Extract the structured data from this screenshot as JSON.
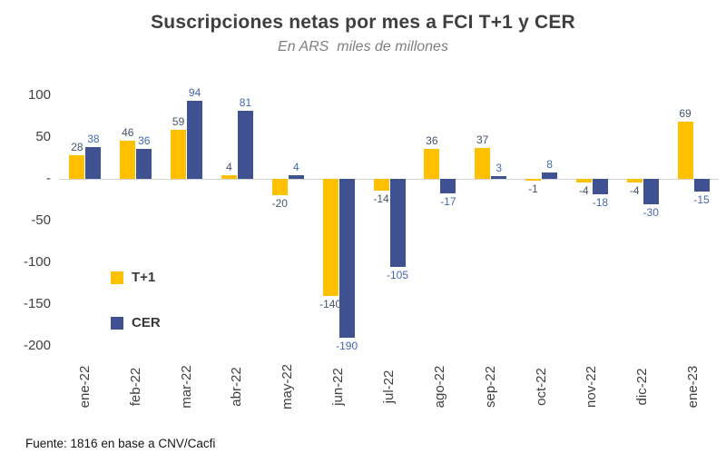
{
  "header": {
    "title": "Suscripciones netas por mes a FCI T+1 y CER",
    "subtitle": "En ARS  miles de millones"
  },
  "footer": {
    "source": "Fuente: 1816 en base a CNV/Cacfi"
  },
  "chart_data": {
    "type": "bar",
    "title": "Suscripciones netas por mes a FCI T+1 y CER",
    "subtitle": "En ARS  miles de millones",
    "categories": [
      "ene-22",
      "feb-22",
      "mar-22",
      "abr-22",
      "may-22",
      "jun-22",
      "jul-22",
      "ago-22",
      "sep-22",
      "oct-22",
      "nov-22",
      "dic-22",
      "ene-23"
    ],
    "series": [
      {
        "name": "T+1",
        "color": "#FFC000",
        "label_color": "#44546A",
        "values": [
          28,
          46,
          59,
          4,
          -20,
          -140,
          -14,
          36,
          37,
          -1,
          -4,
          -4,
          69
        ]
      },
      {
        "name": "CER",
        "color": "#3F5190",
        "label_color": "#4467B1",
        "values": [
          38,
          36,
          94,
          81,
          4,
          -190,
          -105,
          -17,
          3,
          8,
          -18,
          -30,
          -15
        ]
      }
    ],
    "xlabel": "",
    "ylabel": "",
    "ylim": [
      -200,
      100
    ],
    "y_ticks": [
      {
        "value": 100,
        "label": "100"
      },
      {
        "value": 50,
        "label": "50"
      },
      {
        "value": 0,
        "label": "-"
      },
      {
        "value": -50,
        "label": "-50"
      },
      {
        "value": -100,
        "label": "-100"
      },
      {
        "value": -150,
        "label": "-150"
      },
      {
        "value": -200,
        "label": "-200"
      }
    ],
    "grid": false,
    "legend_position": "inside-left"
  }
}
